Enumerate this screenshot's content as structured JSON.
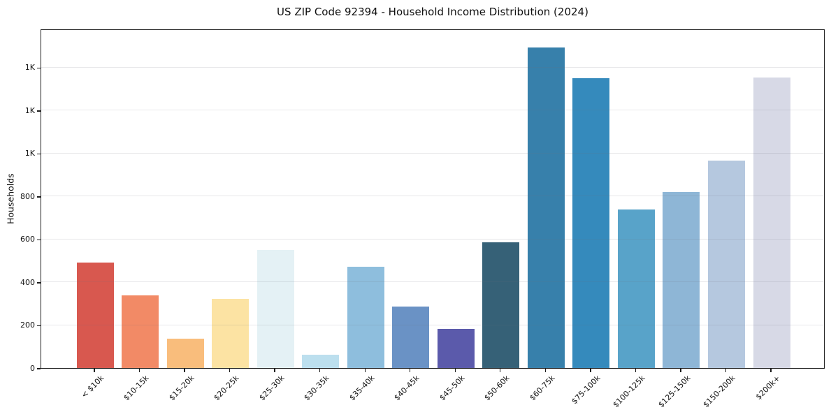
{
  "chart_data": {
    "type": "bar",
    "title": "US ZIP Code 92394 - Household Income Distribution (2024)",
    "xlabel": "",
    "ylabel": "Households",
    "categories": [
      "< $10k",
      "$10-15k",
      "$15-20k",
      "$20-25k",
      "$25-30k",
      "$30-35k",
      "$35-40k",
      "$40-45k",
      "$45-50k",
      "$50-60k",
      "$60-75k",
      "$75-100k",
      "$100-125k",
      "$125-150k",
      "$150-200k",
      "$200k+"
    ],
    "values": [
      490,
      337,
      136,
      323,
      550,
      63,
      473,
      286,
      181,
      584,
      1492,
      1350,
      738,
      818,
      966,
      1354
    ],
    "bar_colors": [
      "#d8584f",
      "#f28a66",
      "#f9bd7c",
      "#fce3a3",
      "#e4f1f5",
      "#bcdfee",
      "#8ebedd",
      "#6a92c5",
      "#5b5aab",
      "#366177",
      "#3780ab",
      "#358abc",
      "#58a3c9",
      "#8eb6d6",
      "#b5c8df",
      "#d7d9e6"
    ],
    "ylim": [
      0,
      1580
    ],
    "yticks": [
      0,
      200,
      400,
      600,
      800,
      1000,
      1200,
      1400
    ],
    "ytick_labels": [
      "0",
      "200",
      "400",
      "600",
      "800",
      "1K",
      "1K",
      "1K"
    ],
    "grid": "horizontal",
    "legend": "none",
    "background": "#ffffff",
    "spine_color": "#1c1c1c"
  }
}
